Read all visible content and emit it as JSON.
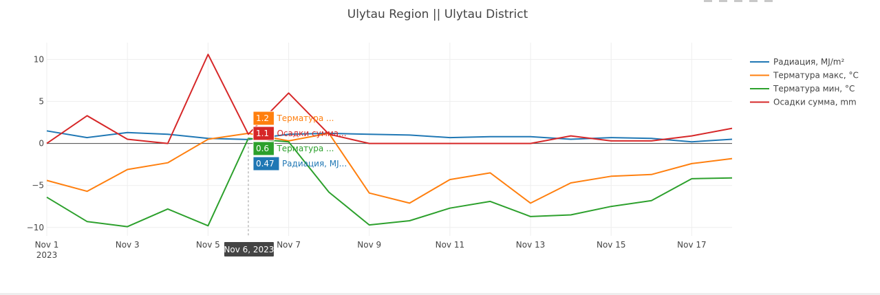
{
  "chart_data": {
    "type": "line",
    "title": "Ulytau Region || Ulytau District",
    "xlabel": "",
    "ylabel": "",
    "x_ticks": [
      "Nov 1",
      "Nov 3",
      "Nov 5",
      "Nov 7",
      "Nov 9",
      "Nov 11",
      "Nov 13",
      "Nov 15",
      "Nov 17"
    ],
    "x_tick_year": "2023",
    "y_ticks": [
      10,
      5,
      0,
      -5,
      -10
    ],
    "ylim": [
      -11,
      12
    ],
    "grid": true,
    "legend_position": "right",
    "x": [
      "2023-11-01",
      "2023-11-02",
      "2023-11-03",
      "2023-11-04",
      "2023-11-05",
      "2023-11-06",
      "2023-11-07",
      "2023-11-08",
      "2023-11-09",
      "2023-11-10",
      "2023-11-11",
      "2023-11-12",
      "2023-11-13",
      "2023-11-14",
      "2023-11-15",
      "2023-11-16",
      "2023-11-17",
      "2023-11-18"
    ],
    "series": [
      {
        "name": "Радиация, MJ/m²",
        "color": "#1f77b4",
        "values": [
          1.5,
          0.7,
          1.3,
          1.1,
          0.6,
          0.47,
          1.1,
          1.2,
          1.1,
          1.0,
          0.7,
          0.8,
          0.8,
          0.5,
          0.7,
          0.6,
          0.2,
          0.5
        ]
      },
      {
        "name": "Терматура макс, °C",
        "color": "#ff7f0e",
        "values": [
          -4.4,
          -5.7,
          -3.1,
          -2.3,
          0.5,
          1.2,
          0.3,
          1.2,
          -5.9,
          -7.1,
          -4.3,
          -3.5,
          -7.1,
          -4.7,
          -3.9,
          -3.7,
          -2.4,
          -1.8
        ]
      },
      {
        "name": "Терматура мин, °C",
        "color": "#2ca02c",
        "values": [
          -6.4,
          -9.3,
          -9.9,
          -7.8,
          -9.8,
          0.6,
          0.2,
          -5.8,
          -9.7,
          -9.2,
          -7.7,
          -6.9,
          -8.7,
          -8.5,
          -7.5,
          -6.8,
          -4.2,
          -4.1
        ]
      },
      {
        "name": "Осадки сумма, mm",
        "color": "#d62728",
        "values": [
          0.0,
          3.3,
          0.5,
          0.0,
          10.6,
          1.1,
          6.0,
          1.1,
          0.0,
          0.0,
          0.0,
          0.0,
          0.0,
          0.9,
          0.3,
          0.3,
          0.9,
          1.8
        ]
      }
    ],
    "hover": {
      "date_label": "Nov 6, 2023",
      "items": [
        {
          "value": "1.2",
          "label": "Терматура ...",
          "color": "#ff7f0e"
        },
        {
          "value": "1.1",
          "label": "Осадки сумма...",
          "color": "#d62728"
        },
        {
          "value": "0.6",
          "label": "Терматура ...",
          "color": "#2ca02c"
        },
        {
          "value": "0.47",
          "label": "Радиация, MJ...",
          "color": "#1f77b4"
        }
      ]
    }
  }
}
